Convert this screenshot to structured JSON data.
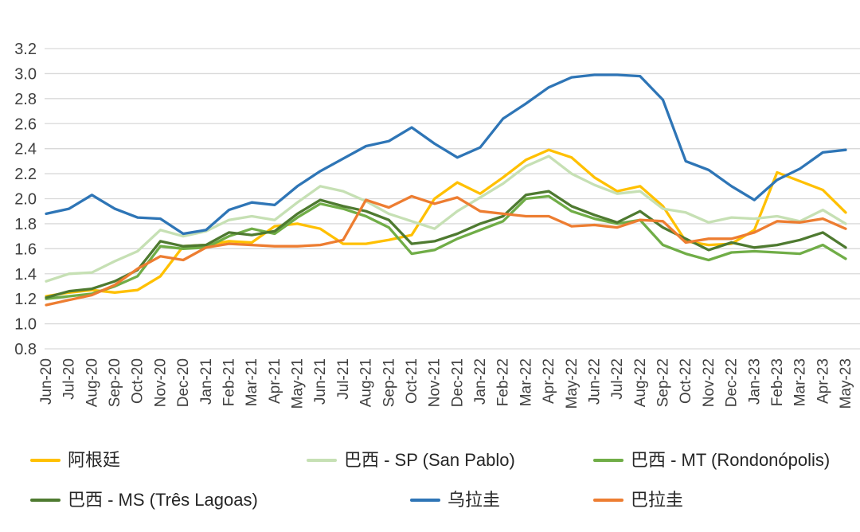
{
  "chart_data": {
    "type": "line",
    "title": "",
    "xlabel": "",
    "ylabel": "",
    "x_labels": [
      "Jun-20",
      "Jul-20",
      "Aug-20",
      "Sep-20",
      "Oct-20",
      "Nov-20",
      "Dec-20",
      "Jan-21",
      "Feb-21",
      "Mar-21",
      "Apr-21",
      "May-21",
      "Jun-21",
      "Jul-21",
      "Aug-21",
      "Sep-21",
      "Oct-21",
      "Nov-21",
      "Dec-21",
      "Jan-22",
      "Feb-22",
      "Mar-22",
      "Apr-22",
      "May-22",
      "Jun-22",
      "Jul-22",
      "Aug-22",
      "Sep-22",
      "Oct-22",
      "Nov-22",
      "Dec-22",
      "Jan-23",
      "Feb-23",
      "Mar-23",
      "Apr-23",
      "May-23"
    ],
    "y_axis": {
      "min": 0.8,
      "max": 3.2,
      "step": 0.2,
      "tick_labels": [
        "3.2",
        "3.0",
        "2.8",
        "2.6",
        "2.4",
        "2.2",
        "2.0",
        "1.8",
        "1.6",
        "1.4",
        "1.2",
        "1.0",
        "0.8"
      ]
    },
    "grid": "horizontal-only",
    "legend_position": "bottom",
    "series": [
      {
        "name": "阿根廷",
        "color": "#FFC000",
        "values": [
          1.22,
          1.25,
          1.27,
          1.25,
          1.27,
          1.38,
          1.62,
          1.63,
          1.66,
          1.65,
          1.78,
          1.8,
          1.76,
          1.64,
          1.64,
          1.67,
          1.71,
          2.0,
          2.13,
          2.04,
          2.17,
          2.31,
          2.39,
          2.33,
          2.17,
          2.06,
          2.1,
          1.94,
          1.66,
          1.63,
          1.64,
          1.75,
          2.21,
          2.14,
          2.07,
          1.89
        ]
      },
      {
        "name": "巴西 - SP (San Pablo)",
        "color": "#C6E0B4",
        "values": [
          1.34,
          1.4,
          1.41,
          1.5,
          1.58,
          1.75,
          1.7,
          1.74,
          1.83,
          1.86,
          1.83,
          1.97,
          2.1,
          2.06,
          1.98,
          1.88,
          1.82,
          1.76,
          1.9,
          2.01,
          2.12,
          2.26,
          2.34,
          2.2,
          2.11,
          2.04,
          2.06,
          1.92,
          1.89,
          1.81,
          1.85,
          1.84,
          1.86,
          1.82,
          1.91,
          1.8
        ]
      },
      {
        "name": "巴西 - MT (Rondonópolis)",
        "color": "#70AD47",
        "values": [
          1.2,
          1.22,
          1.24,
          1.3,
          1.38,
          1.62,
          1.6,
          1.61,
          1.7,
          1.76,
          1.72,
          1.85,
          1.96,
          1.92,
          1.86,
          1.77,
          1.56,
          1.59,
          1.68,
          1.75,
          1.82,
          2.0,
          2.02,
          1.9,
          1.84,
          1.8,
          1.83,
          1.63,
          1.56,
          1.51,
          1.57,
          1.58,
          1.57,
          1.56,
          1.63,
          1.52
        ]
      },
      {
        "name": "巴西 - MS (Três Lagoas)",
        "color": "#4E7A30",
        "values": [
          1.21,
          1.26,
          1.28,
          1.34,
          1.43,
          1.66,
          1.62,
          1.63,
          1.73,
          1.71,
          1.74,
          1.88,
          1.99,
          1.94,
          1.9,
          1.83,
          1.64,
          1.66,
          1.72,
          1.8,
          1.86,
          2.03,
          2.06,
          1.94,
          1.87,
          1.81,
          1.9,
          1.77,
          1.68,
          1.59,
          1.65,
          1.61,
          1.63,
          1.67,
          1.73,
          1.61
        ]
      },
      {
        "name": "乌拉圭",
        "color": "#2E75B6",
        "values": [
          1.88,
          1.92,
          2.03,
          1.92,
          1.85,
          1.84,
          1.72,
          1.75,
          1.91,
          1.97,
          1.95,
          2.1,
          2.22,
          2.32,
          2.42,
          2.46,
          2.57,
          2.44,
          2.33,
          2.41,
          2.64,
          2.76,
          2.89,
          2.97,
          2.99,
          2.99,
          2.98,
          2.79,
          2.3,
          2.23,
          2.1,
          1.99,
          2.15,
          2.24,
          2.37,
          2.39
        ]
      },
      {
        "name": "巴拉圭",
        "color": "#ED7D31",
        "values": [
          1.15,
          1.19,
          1.23,
          1.31,
          1.44,
          1.54,
          1.51,
          1.61,
          1.64,
          1.63,
          1.62,
          1.62,
          1.63,
          1.67,
          1.99,
          1.93,
          2.02,
          1.96,
          2.01,
          1.9,
          1.88,
          1.86,
          1.86,
          1.78,
          1.79,
          1.77,
          1.83,
          1.82,
          1.65,
          1.68,
          1.68,
          1.73,
          1.82,
          1.81,
          1.84,
          1.76
        ]
      }
    ],
    "legend_rows": [
      {
        "row": 0,
        "series_indexes": [
          0,
          1,
          2
        ]
      },
      {
        "row": 1,
        "series_indexes": [
          3,
          4,
          5
        ]
      }
    ]
  },
  "colors": {
    "background": "#FFFFFF",
    "gridline": "#D9D9D9",
    "tick_text": "#404040",
    "legend_text": "#262626"
  }
}
